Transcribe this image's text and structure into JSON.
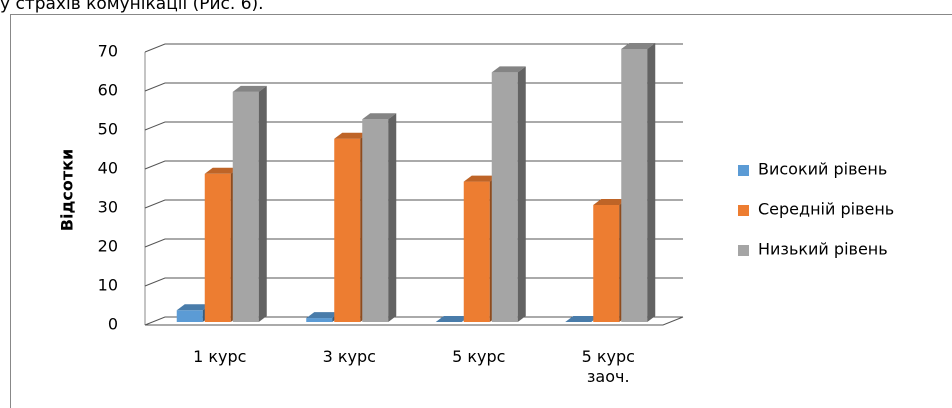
{
  "caption": "у страхів комунікації (Рис. 6).",
  "chart_data": {
    "type": "bar3d",
    "y_label": "Відсотки",
    "categories": [
      "1 курс",
      "3 курс",
      "5 курс",
      "5 курс заоч."
    ],
    "series": [
      {
        "name": "Високий рівень",
        "color": "#5b9bd5",
        "values": [
          3,
          1,
          0,
          0
        ]
      },
      {
        "name": "Середній рівень",
        "color": "#ed7d31",
        "values": [
          38,
          47,
          36,
          30
        ]
      },
      {
        "name": "Низький рівень",
        "color": "#a5a5a5",
        "values": [
          59,
          52,
          64,
          70
        ]
      }
    ],
    "ylim": [
      0,
      70
    ],
    "yticks": [
      0,
      10,
      20,
      30,
      40,
      50,
      60,
      70
    ],
    "grid": true,
    "legend": "right"
  }
}
